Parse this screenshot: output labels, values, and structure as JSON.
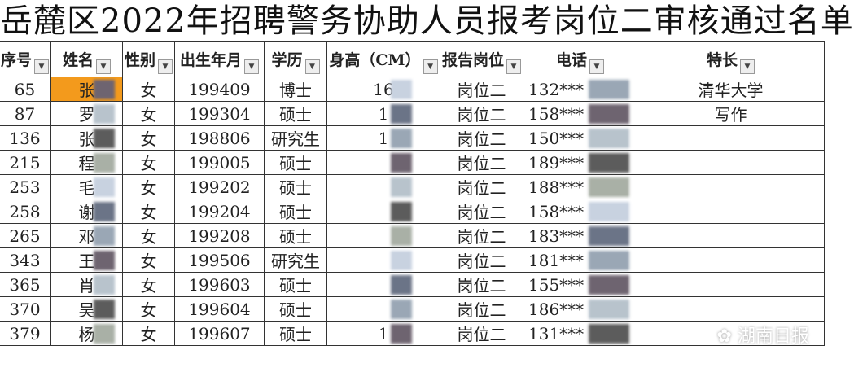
{
  "title": "岳麓区2022年招聘警务协助人员报考岗位二审核通过名单",
  "headers": [
    "序号",
    "姓名",
    "性别",
    "出生年月",
    "学历",
    "身高（CM）",
    "报告岗位",
    "电话",
    "特长"
  ],
  "rows": [
    [
      "65",
      "张",
      "女",
      "199409",
      "博士",
      "16",
      "岗位二",
      "132***",
      "清华大学"
    ],
    [
      "87",
      "罗",
      "女",
      "199304",
      "硕士",
      "1",
      "岗位二",
      "158***",
      "写作"
    ],
    [
      "136",
      "张",
      "女",
      "198806",
      "研究生",
      "1",
      "岗位二",
      "150***",
      ""
    ],
    [
      "215",
      "程",
      "女",
      "199005",
      "硕士",
      "",
      "岗位二",
      "189***",
      ""
    ],
    [
      "253",
      "毛",
      "女",
      "199202",
      "硕士",
      "",
      "岗位二",
      "188***",
      ""
    ],
    [
      "258",
      "谢",
      "女",
      "199204",
      "硕士",
      "",
      "岗位二",
      "158***",
      ""
    ],
    [
      "265",
      "邓",
      "女",
      "199208",
      "硕士",
      "",
      "岗位二",
      "183***",
      ""
    ],
    [
      "343",
      "王",
      "女",
      "199506",
      "研究生",
      "",
      "岗位二",
      "181***",
      ""
    ],
    [
      "365",
      "肖",
      "女",
      "199603",
      "硕士",
      "",
      "岗位二",
      "155***",
      ""
    ],
    [
      "370",
      "吴",
      "女",
      "199604",
      "硕士",
      "",
      "岗位二",
      "186***",
      ""
    ],
    [
      "379",
      "杨",
      "女",
      "199607",
      "硕士",
      "1",
      "岗位二",
      "131***",
      ""
    ]
  ],
  "highlight_color": "#f39a1c",
  "watermark": "湖南日报"
}
